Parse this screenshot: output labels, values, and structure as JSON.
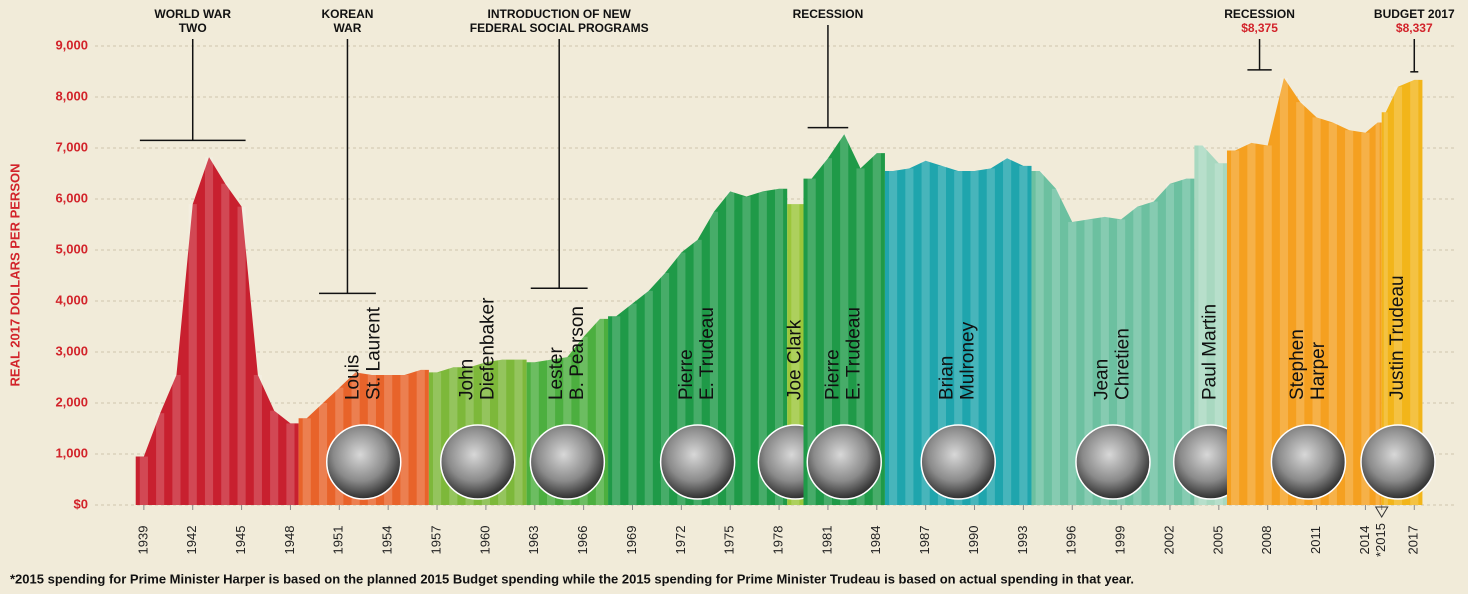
{
  "chart_data": {
    "type": "bar",
    "y_label": "REAL 2017 DOLLARS PER PERSON",
    "footnote": "*2015 spending for Prime Minister Harper is based on the planned 2015 Budget spending while the 2015 spending for Prime Minister Trudeau is based on actual spending in that year.",
    "xlim": [
      1936,
      2019.5
    ],
    "ylim": [
      0,
      9000
    ],
    "yticks": [
      {
        "value": 0,
        "label": "$0"
      },
      {
        "value": 1000,
        "label": "1,000"
      },
      {
        "value": 2000,
        "label": "2,000"
      },
      {
        "value": 3000,
        "label": "3,000"
      },
      {
        "value": 4000,
        "label": "4,000"
      },
      {
        "value": 5000,
        "label": "5,000"
      },
      {
        "value": 6000,
        "label": "6,000"
      },
      {
        "value": 7000,
        "label": "7,000"
      },
      {
        "value": 8000,
        "label": "8,000"
      },
      {
        "value": 9000,
        "label": "9,000"
      }
    ],
    "xticks": [
      1939,
      1942,
      1945,
      1948,
      1951,
      1954,
      1957,
      1960,
      1963,
      1966,
      1969,
      1972,
      1975,
      1978,
      1981,
      1984,
      1987,
      1990,
      1993,
      1996,
      1999,
      2002,
      2005,
      2008,
      2011,
      2014,
      {
        "value": 2015,
        "label": "*2015"
      },
      2017
    ],
    "grid": true,
    "series": [
      {
        "color": "#c8202f",
        "x": [
          1939,
          1940,
          1941,
          1942,
          1943,
          1944,
          1945,
          1946,
          1947,
          1948
        ],
        "values": [
          950,
          1800,
          2550,
          5900,
          6820,
          6300,
          5850,
          2550,
          1850,
          1600
        ]
      },
      {
        "name": [
          "Louis",
          "St. Laurent"
        ],
        "color": "#e8632a",
        "x": [
          1949,
          1950,
          1951,
          1952,
          1953,
          1954,
          1955,
          1956
        ],
        "values": [
          1700,
          2000,
          2300,
          2600,
          2550,
          2550,
          2550,
          2650
        ]
      },
      {
        "name": [
          "John",
          "Diefenbaker"
        ],
        "color": "#7db83a",
        "x": [
          1957,
          1958,
          1959,
          1960,
          1961,
          1962
        ],
        "values": [
          2600,
          2700,
          2700,
          2800,
          2850,
          2850
        ]
      },
      {
        "name": [
          "Lester",
          "B. Pearson"
        ],
        "color": "#4caf3f",
        "x": [
          1963,
          1964,
          1965,
          1966,
          1967
        ],
        "values": [
          2800,
          2850,
          2900,
          3300,
          3650
        ]
      },
      {
        "name": [
          "Pierre",
          "E. Trudeau"
        ],
        "color": "#1f9a48",
        "x": [
          1968,
          1969,
          1970,
          1971,
          1972,
          1973,
          1974,
          1975,
          1976,
          1977,
          1978
        ],
        "values": [
          3700,
          3950,
          4200,
          4550,
          4950,
          5200,
          5750,
          6150,
          6050,
          6150,
          6200
        ]
      },
      {
        "name": [
          "Joe Clark"
        ],
        "color": "#9bc63a",
        "x": [
          1979
        ],
        "values": [
          5900
        ]
      },
      {
        "name": [
          "Pierre",
          "E. Trudeau"
        ],
        "color": "#1f9a48",
        "x": [
          1980,
          1981,
          1982,
          1983,
          1984
        ],
        "values": [
          6400,
          6800,
          7270,
          6600,
          6900
        ]
      },
      {
        "name": [
          "Brian",
          "Mulroney"
        ],
        "color": "#1fa5ad",
        "x": [
          1985,
          1986,
          1987,
          1988,
          1989,
          1990,
          1991,
          1992,
          1993
        ],
        "values": [
          6550,
          6600,
          6750,
          6650,
          6550,
          6550,
          6600,
          6800,
          6650
        ]
      },
      {
        "name": [
          "Jean",
          "Chretien"
        ],
        "color": "#6cc0a0",
        "x": [
          1994,
          1995,
          1996,
          1997,
          1998,
          1999,
          2000,
          2001,
          2002,
          2003
        ],
        "values": [
          6550,
          6200,
          5550,
          5600,
          5650,
          5600,
          5850,
          5950,
          6300,
          6400
        ]
      },
      {
        "name": [
          "Paul Martin"
        ],
        "color": "#a8d8c0",
        "x": [
          2004,
          2005
        ],
        "values": [
          7050,
          6700
        ]
      },
      {
        "name": [
          "Stephen",
          "Harper"
        ],
        "color": "#f5a020",
        "x": [
          2006,
          2007,
          2008,
          2009,
          2010,
          2011,
          2012,
          2013,
          2014,
          2015
        ],
        "values": [
          6950,
          7100,
          7050,
          8375,
          7900,
          7600,
          7500,
          7350,
          7300,
          7500
        ]
      },
      {
        "name": [
          "Justin Trudeau"
        ],
        "color": "#f2b51a",
        "x": [
          2015,
          2016,
          2017
        ],
        "values": [
          7700,
          8200,
          8337
        ]
      }
    ],
    "annotations": [
      {
        "text": [
          "WORLD WAR",
          "TWO"
        ],
        "x": [
          1939,
          1945
        ],
        "y": 7150
      },
      {
        "text": [
          "KOREAN",
          "WAR"
        ],
        "x": [
          1950,
          1953
        ],
        "y": 4150
      },
      {
        "text": [
          "INTRODUCTION OF NEW",
          "FEDERAL SOCIAL PROGRAMS"
        ],
        "x": [
          1963,
          1966
        ],
        "y": 4250
      },
      {
        "text": [
          "RECESSION"
        ],
        "x": [
          1980,
          1982
        ],
        "y": 7400
      },
      {
        "text": [
          "RECESSION"
        ],
        "x": [
          2007,
          2008
        ],
        "value": 8375,
        "value_label": "$8,375"
      },
      {
        "text": [
          "BUDGET 2017"
        ],
        "x": [
          2017,
          2017
        ],
        "value": 8337,
        "value_label": "$8,337"
      }
    ]
  }
}
